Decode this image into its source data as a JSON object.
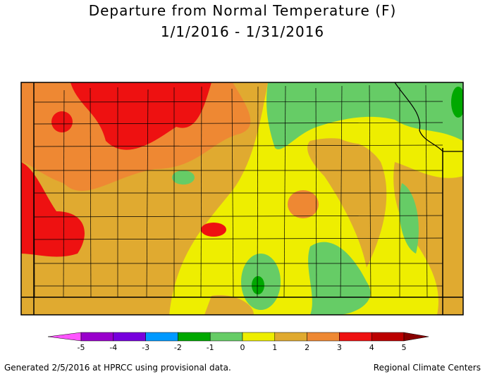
{
  "header": {
    "title": "Departure from Normal Temperature (F)",
    "subtitle": "1/1/2016 - 1/31/2016"
  },
  "legend": {
    "ticks": [
      "-5",
      "-4",
      "-3",
      "-2",
      "-1",
      "0",
      "1",
      "2",
      "3",
      "4",
      "5"
    ],
    "colors": [
      "#ff55ff",
      "#9900cc",
      "#7700dd",
      "#0099ff",
      "#00a800",
      "#66cc66",
      "#eeee00",
      "#e0aa30",
      "#ee8833",
      "#ee1111",
      "#bb0000",
      "#880000"
    ]
  },
  "footer": {
    "left": "Generated 2/5/2016 at HPRCC using provisional data.",
    "right": "Regional Climate Centers"
  }
}
